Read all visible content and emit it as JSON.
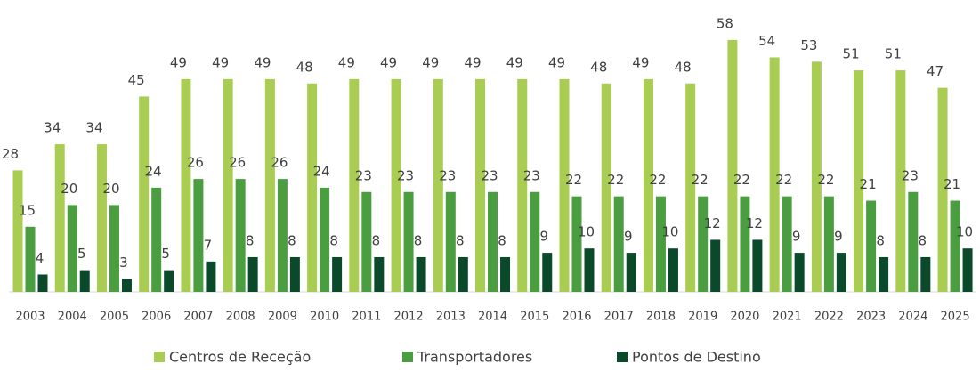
{
  "chart_data": {
    "type": "bar",
    "categories": [
      "2003",
      "2004",
      "2005",
      "2006",
      "2007",
      "2008",
      "2009",
      "2010",
      "2011",
      "2012",
      "2013",
      "2014",
      "2015",
      "2016",
      "2017",
      "2018",
      "2019",
      "2020",
      "2021",
      "2022",
      "2023",
      "2024",
      "2025"
    ],
    "series": [
      {
        "name": "Centros de Receção",
        "color": "#a9cc52",
        "values": [
          28,
          34,
          34,
          45,
          49,
          49,
          49,
          48,
          49,
          49,
          49,
          49,
          49,
          49,
          48,
          49,
          48,
          58,
          54,
          53,
          51,
          51,
          47
        ]
      },
      {
        "name": "Transportadores",
        "color": "#4a9e3f",
        "values": [
          15,
          20,
          20,
          24,
          26,
          26,
          26,
          24,
          23,
          23,
          23,
          23,
          23,
          22,
          22,
          22,
          22,
          22,
          22,
          22,
          21,
          23,
          21
        ]
      },
      {
        "name": "Pontos de Destino",
        "color": "#0a4a2a",
        "values": [
          4,
          5,
          3,
          5,
          7,
          8,
          8,
          8,
          8,
          8,
          8,
          8,
          9,
          10,
          9,
          10,
          12,
          12,
          9,
          9,
          8,
          8,
          10
        ]
      }
    ],
    "legend": "bottom"
  }
}
